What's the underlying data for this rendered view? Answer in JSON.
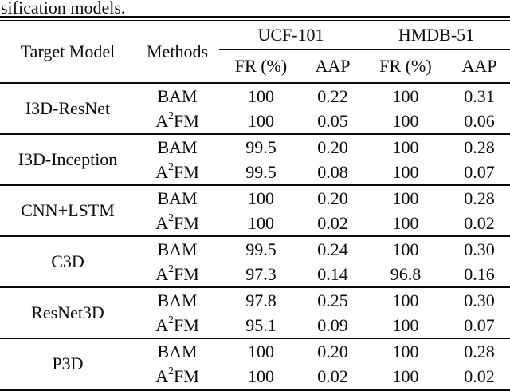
{
  "caption": "sification models.",
  "table": {
    "headers": {
      "target_model": "Target Model",
      "methods": "Methods",
      "dataset_groups": [
        "UCF-101",
        "HMDB-51"
      ],
      "sub_headers": [
        "FR (%)",
        "AAP",
        "FR (%)",
        "AAP"
      ]
    },
    "rows": [
      {
        "model": "I3D-ResNet",
        "methods": [
          {
            "method": {
              "pre": "BAM",
              "sup": "",
              "post": ""
            },
            "cells": [
              [
                "100",
                true
              ],
              [
                "0.22",
                false
              ],
              [
                "100",
                true
              ],
              [
                "0.31",
                false
              ]
            ]
          },
          {
            "method": {
              "pre": "A",
              "sup": "2",
              "post": "FM"
            },
            "cells": [
              [
                "100",
                true
              ],
              [
                "0.05",
                true
              ],
              [
                "100",
                true
              ],
              [
                "0.06",
                true
              ]
            ]
          }
        ]
      },
      {
        "model": "I3D-Inception",
        "methods": [
          {
            "method": {
              "pre": "BAM",
              "sup": "",
              "post": ""
            },
            "cells": [
              [
                "99.5",
                true
              ],
              [
                "0.20",
                false
              ],
              [
                "100",
                true
              ],
              [
                "0.28",
                false
              ]
            ]
          },
          {
            "method": {
              "pre": "A",
              "sup": "2",
              "post": "FM"
            },
            "cells": [
              [
                "99.5",
                true
              ],
              [
                "0.08",
                true
              ],
              [
                "100",
                true
              ],
              [
                "0.07",
                true
              ]
            ]
          }
        ]
      },
      {
        "model": "CNN+LSTM",
        "methods": [
          {
            "method": {
              "pre": "BAM",
              "sup": "",
              "post": ""
            },
            "cells": [
              [
                "100",
                true
              ],
              [
                "0.20",
                false
              ],
              [
                "100",
                true
              ],
              [
                "0.28",
                false
              ]
            ]
          },
          {
            "method": {
              "pre": "A",
              "sup": "2",
              "post": "FM"
            },
            "cells": [
              [
                "100",
                true
              ],
              [
                "0.02",
                true
              ],
              [
                "100",
                true
              ],
              [
                "0.02",
                true
              ]
            ]
          }
        ]
      },
      {
        "model": "C3D",
        "methods": [
          {
            "method": {
              "pre": "BAM",
              "sup": "",
              "post": ""
            },
            "cells": [
              [
                "99.5",
                true
              ],
              [
                "0.24",
                false
              ],
              [
                "100",
                true
              ],
              [
                "0.30",
                false
              ]
            ]
          },
          {
            "method": {
              "pre": "A",
              "sup": "2",
              "post": "FM"
            },
            "cells": [
              [
                "97.3",
                false
              ],
              [
                "0.14",
                true
              ],
              [
                "96.8",
                false
              ],
              [
                "0.16",
                true
              ]
            ]
          }
        ]
      },
      {
        "model": "ResNet3D",
        "methods": [
          {
            "method": {
              "pre": "BAM",
              "sup": "",
              "post": ""
            },
            "cells": [
              [
                "97.8",
                true
              ],
              [
                "0.25",
                false
              ],
              [
                "100",
                true
              ],
              [
                "0.30",
                false
              ]
            ]
          },
          {
            "method": {
              "pre": "A",
              "sup": "2",
              "post": "FM"
            },
            "cells": [
              [
                "95.1",
                false
              ],
              [
                "0.09",
                true
              ],
              [
                "100",
                true
              ],
              [
                "0.07",
                true
              ]
            ]
          }
        ]
      },
      {
        "model": "P3D",
        "methods": [
          {
            "method": {
              "pre": "BAM",
              "sup": "",
              "post": ""
            },
            "cells": [
              [
                "100",
                true
              ],
              [
                "0.20",
                false
              ],
              [
                "100",
                true
              ],
              [
                "0.28",
                false
              ]
            ]
          },
          {
            "method": {
              "pre": "A",
              "sup": "2",
              "post": "FM"
            },
            "cells": [
              [
                "100",
                true
              ],
              [
                "0.02",
                true
              ],
              [
                "100",
                true
              ],
              [
                "0.02",
                true
              ]
            ]
          }
        ]
      }
    ]
  }
}
